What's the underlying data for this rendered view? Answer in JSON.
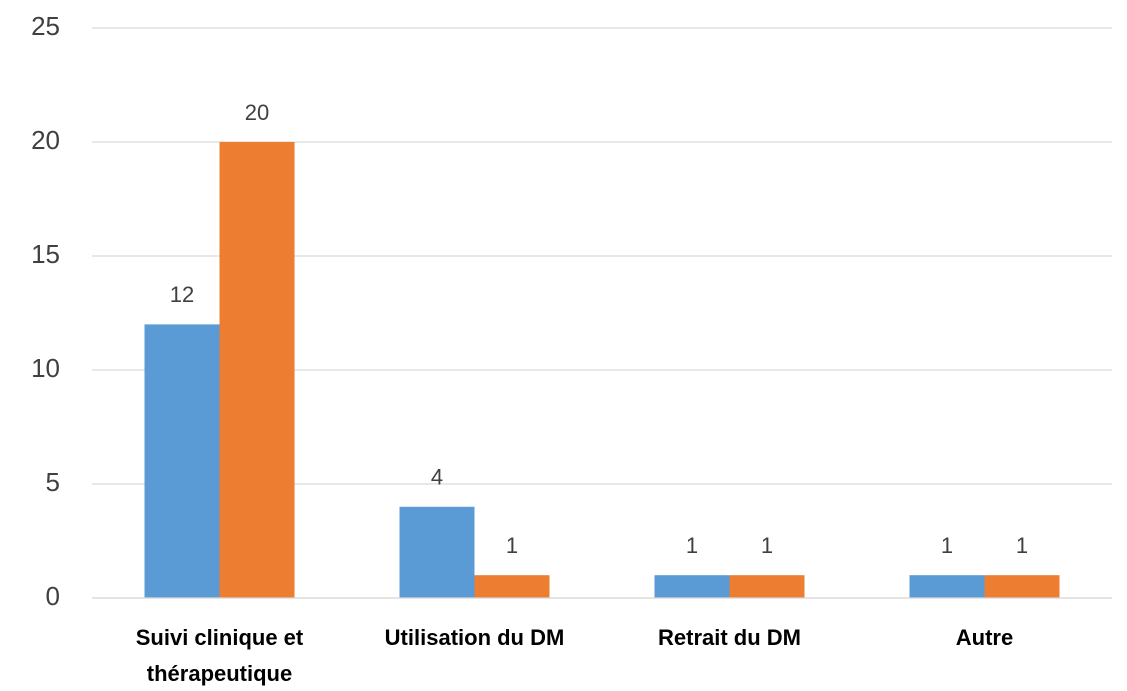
{
  "chart_data": {
    "type": "bar",
    "categories": [
      "Suivi clinique et thérapeutique",
      "Utilisation du DM",
      "Retrait du DM",
      "Autre"
    ],
    "series": [
      {
        "color": "#5b9bd5",
        "values": [
          12,
          4,
          1,
          1
        ]
      },
      {
        "color": "#ed7d31",
        "values": [
          20,
          1,
          1,
          1
        ]
      }
    ],
    "ylim": [
      0,
      25
    ],
    "yticks": [
      0,
      5,
      10,
      15,
      20,
      25
    ],
    "grid": true
  }
}
